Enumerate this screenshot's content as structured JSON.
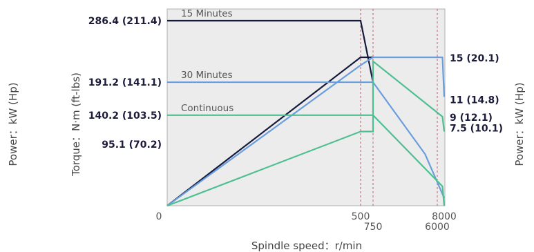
{
  "chart_data": {
    "type": "line",
    "xlabel": "Spindle speed：r/min",
    "ylabel_left_outer": "Power：kW (Hp)",
    "ylabel_left_inner": "Torque：N·m (ft-lbs)",
    "ylabel_right": "Power：kW (Hp)",
    "origin_label": "0",
    "x_ticks": [
      {
        "value": 500,
        "label": "500",
        "row": "upper"
      },
      {
        "value": 750,
        "label": "750",
        "row": "lower"
      },
      {
        "value": 6000,
        "label": "6000",
        "row": "lower"
      },
      {
        "value": 8000,
        "label": "8000",
        "row": "upper"
      }
    ],
    "torque_labels": [
      {
        "value": 286.4,
        "label": "286.4 (211.4)"
      },
      {
        "value": 191.2,
        "label": "191.2 (141.1)"
      },
      {
        "value": 140.2,
        "label": "140.2 (103.5)"
      },
      {
        "value": 95.1,
        "label": "95.1 (70.2)"
      }
    ],
    "power_labels": [
      {
        "value": 15,
        "label": "15 (20.1)"
      },
      {
        "value": 11,
        "label": "11 (14.8)"
      },
      {
        "value": 9,
        "label": "9 (12.1)"
      },
      {
        "value": 7.5,
        "label": "7.5 (10.1)"
      }
    ],
    "series": [
      {
        "name": "15 Minutes",
        "color": "#141a3c",
        "torque": [
          [
            0,
            286.4
          ],
          [
            500,
            286.4
          ],
          [
            750,
            191.2
          ]
        ],
        "power": [
          [
            0,
            0
          ],
          [
            500,
            15
          ],
          [
            750,
            15
          ]
        ]
      },
      {
        "name": "30 Minutes",
        "color": "#6a9ddc",
        "torque": [
          [
            0,
            191.2
          ],
          [
            750,
            191.2
          ],
          [
            5000,
            80
          ],
          [
            8000,
            12
          ]
        ],
        "power": [
          [
            0,
            0
          ],
          [
            500,
            14.2
          ],
          [
            750,
            15
          ],
          [
            7500,
            15
          ],
          [
            8000,
            11
          ]
        ]
      },
      {
        "name": "Continuous",
        "color": "#4dbf90",
        "torque": [
          [
            0,
            140.2
          ],
          [
            750,
            140.2
          ],
          [
            7500,
            30
          ],
          [
            8000,
            0
          ]
        ],
        "power": [
          [
            0,
            0
          ],
          [
            500,
            7.5
          ],
          [
            750,
            7.5
          ],
          [
            750,
            9
          ],
          [
            750,
            14.6
          ],
          [
            7500,
            9
          ],
          [
            8000,
            7.5
          ]
        ]
      }
    ],
    "grid": false,
    "background": "#ececec"
  }
}
